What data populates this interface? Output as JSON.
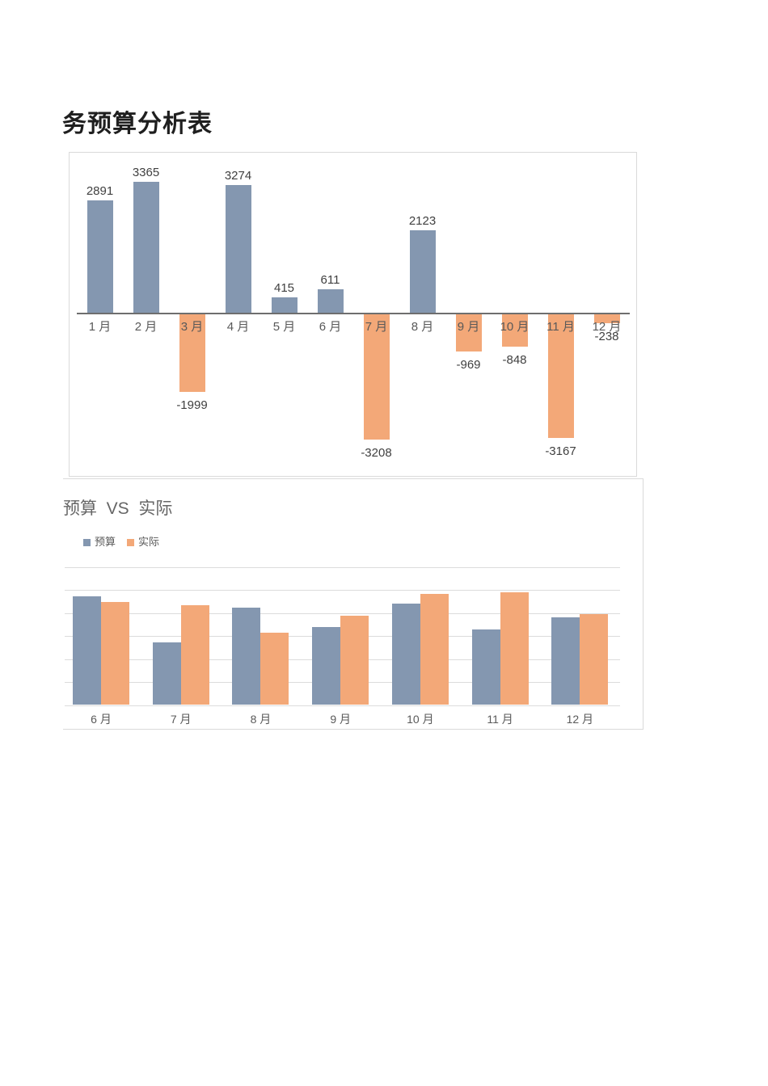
{
  "page": {
    "title": "务预算分析表",
    "background": "#ffffff"
  },
  "colors": {
    "budget_blue": "#8497B0",
    "actual_orange": "#F3A878",
    "axis_gray": "#6E6E6E",
    "grid_gray": "#DCDCDC",
    "value_label_gray": "#404040",
    "category_label_gray": "#595959",
    "section_title_gray": "#666666"
  },
  "chart_data": [
    {
      "id": "monthly-balance",
      "type": "bar",
      "title": "",
      "categories": [
        "1 月",
        "2 月",
        "3 月",
        "4 月",
        "5 月",
        "6 月",
        "7 月",
        "8 月",
        "9 月",
        "10 月",
        "11 月",
        "12 月"
      ],
      "values": [
        2891,
        3365,
        -1999,
        3274,
        415,
        611,
        -3208,
        2123,
        -969,
        -848,
        -3167,
        -238
      ],
      "data_labels": [
        2891,
        3365,
        -1999,
        3274,
        415,
        611,
        -3208,
        2123,
        -969,
        -848,
        -3167,
        -238
      ],
      "positive_color": "#8497B0",
      "negative_color": "#F3A878",
      "xlabel": "",
      "ylabel": "",
      "ylim": [
        -3500,
        3500
      ],
      "grid": "off",
      "axis": "zero-baseline-only",
      "legend_position": "none"
    },
    {
      "id": "budget-vs-actual",
      "type": "bar",
      "title": "预算  VS  实际",
      "categories": [
        "6 月",
        "7 月",
        "8 月",
        "9 月",
        "10 月",
        "11 月",
        "12 月"
      ],
      "series": [
        {
          "name": "预算",
          "color": "#8497B0",
          "values": [
            4730,
            2710,
            4240,
            3380,
            4400,
            3290,
            3820
          ]
        },
        {
          "name": "实际",
          "color": "#F3A878",
          "values": [
            4480,
            4340,
            3150,
            3880,
            4840,
            4890,
            3940
          ]
        }
      ],
      "values_estimated": true,
      "xlabel": "",
      "ylabel": "",
      "ylim": [
        0,
        6000
      ],
      "gridline_step": 1000,
      "grid": "horizontal",
      "legend_position": "top-left"
    }
  ]
}
